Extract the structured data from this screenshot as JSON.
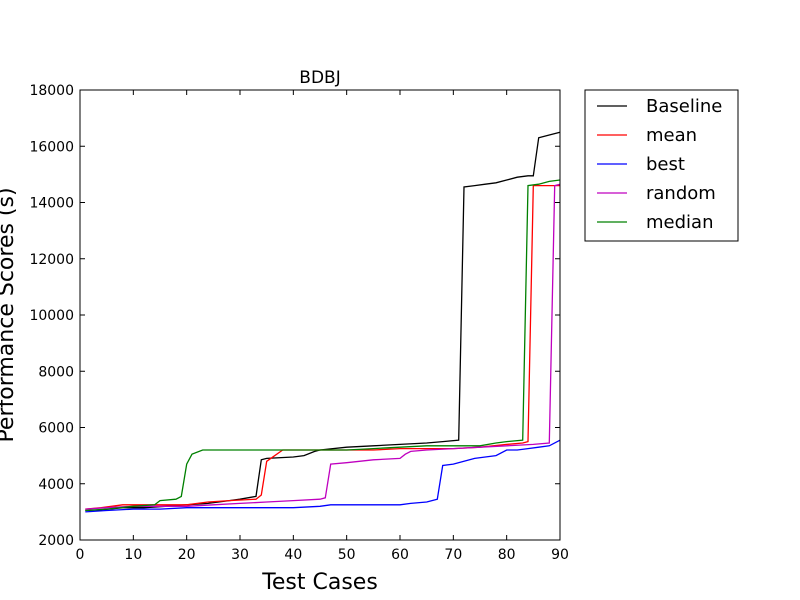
{
  "chart_data": {
    "type": "line",
    "title": "BDBJ",
    "xlabel": "Test Cases",
    "ylabel": "Performance Scores (s)",
    "xlim": [
      0,
      90
    ],
    "ylim": [
      2000,
      18000
    ],
    "xticks": [
      0,
      10,
      20,
      30,
      40,
      50,
      60,
      70,
      80,
      90
    ],
    "yticks": [
      2000,
      4000,
      6000,
      8000,
      10000,
      12000,
      14000,
      16000,
      18000
    ],
    "grid": false,
    "legend_position": "outside-right-top",
    "series": [
      {
        "name": "Baseline",
        "color": "#000000",
        "x": [
          1,
          4,
          8,
          12,
          16,
          20,
          24,
          28,
          30,
          33,
          34,
          35,
          40,
          42,
          44,
          45,
          50,
          55,
          60,
          65,
          68,
          71,
          72,
          74,
          76,
          78,
          80,
          82,
          84,
          85,
          86,
          88,
          90
        ],
        "y": [
          3050,
          3070,
          3150,
          3150,
          3200,
          3250,
          3300,
          3400,
          3450,
          3550,
          4850,
          4900,
          4950,
          5000,
          5150,
          5200,
          5300,
          5350,
          5400,
          5450,
          5500,
          5550,
          14550,
          14600,
          14650,
          14700,
          14800,
          14900,
          14950,
          14950,
          16300,
          16400,
          16500
        ]
      },
      {
        "name": "mean",
        "color": "#ff0000",
        "x": [
          1,
          4,
          8,
          12,
          16,
          20,
          24,
          28,
          33,
          34,
          35,
          38,
          45,
          50,
          55,
          60,
          65,
          70,
          75,
          80,
          83,
          84,
          85,
          86,
          88,
          90
        ],
        "y": [
          3100,
          3150,
          3250,
          3250,
          3250,
          3250,
          3350,
          3400,
          3450,
          3600,
          4800,
          5200,
          5200,
          5200,
          5200,
          5250,
          5250,
          5250,
          5300,
          5400,
          5450,
          5500,
          14600,
          14600,
          14600,
          14600
        ]
      },
      {
        "name": "best",
        "color": "#0000ff",
        "x": [
          1,
          5,
          10,
          15,
          20,
          25,
          30,
          35,
          40,
          45,
          47,
          50,
          55,
          60,
          62,
          65,
          67,
          68,
          70,
          72,
          74,
          76,
          78,
          80,
          82,
          84,
          86,
          88,
          90
        ],
        "y": [
          3000,
          3050,
          3100,
          3100,
          3150,
          3150,
          3150,
          3150,
          3150,
          3200,
          3250,
          3250,
          3250,
          3250,
          3300,
          3350,
          3450,
          4650,
          4700,
          4800,
          4900,
          4950,
          5000,
          5200,
          5200,
          5250,
          5300,
          5350,
          5550
        ]
      },
      {
        "name": "random",
        "color": "#bf00bf",
        "x": [
          1,
          5,
          10,
          15,
          20,
          25,
          30,
          35,
          40,
          45,
          46,
          47,
          50,
          55,
          60,
          61,
          62,
          65,
          70,
          75,
          80,
          85,
          88,
          89,
          90
        ],
        "y": [
          3100,
          3150,
          3200,
          3200,
          3200,
          3250,
          3300,
          3350,
          3400,
          3450,
          3500,
          4700,
          4750,
          4850,
          4900,
          5050,
          5150,
          5200,
          5250,
          5300,
          5350,
          5400,
          5450,
          14600,
          14650
        ]
      },
      {
        "name": "median",
        "color": "#008000",
        "x": [
          1,
          5,
          10,
          14,
          15,
          18,
          19,
          20,
          21,
          23,
          28,
          35,
          40,
          45,
          50,
          55,
          60,
          65,
          70,
          75,
          78,
          80,
          83,
          84,
          86,
          88,
          90
        ],
        "y": [
          3050,
          3100,
          3200,
          3250,
          3400,
          3450,
          3550,
          4700,
          5050,
          5200,
          5200,
          5200,
          5200,
          5200,
          5200,
          5250,
          5300,
          5350,
          5350,
          5350,
          5450,
          5500,
          5550,
          14600,
          14650,
          14750,
          14800
        ]
      }
    ]
  }
}
